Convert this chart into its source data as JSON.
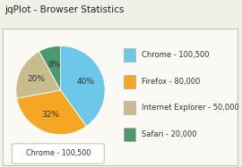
{
  "title": "jqPlot - Browser Statistics",
  "slices": [
    {
      "label": "Chrome - 100,500",
      "value": 100500,
      "color": "#6dc7e8",
      "pct": "40%"
    },
    {
      "label": "Firefox - 80,000",
      "value": 80000,
      "color": "#f5a623",
      "pct": "32%"
    },
    {
      "label": "Internet Explorer - 50,000",
      "value": 50000,
      "color": "#c8bb8e",
      "pct": "20%"
    },
    {
      "label": "Safari - 20,000",
      "value": 20000,
      "color": "#4a9a6e",
      "pct": "8%"
    }
  ],
  "tooltip_label": "Chrome - 100,500",
  "bg_color": "#f0efe8",
  "chart_bg": "#faf9f4",
  "border_color": "#c8c8b0",
  "title_fontsize": 7.5,
  "legend_fontsize": 6.0,
  "pct_fontsize": 6.5,
  "startangle": 90
}
